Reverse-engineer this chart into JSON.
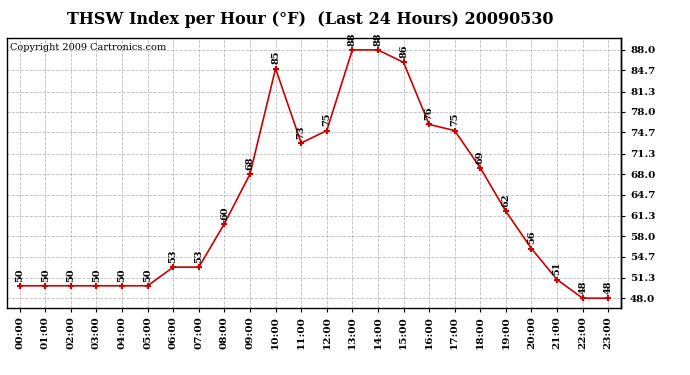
{
  "title": "THSW Index per Hour (°F)  (Last 24 Hours) 20090530",
  "copyright": "Copyright 2009 Cartronics.com",
  "hours": [
    0,
    1,
    2,
    3,
    4,
    5,
    6,
    7,
    8,
    9,
    10,
    11,
    12,
    13,
    14,
    15,
    16,
    17,
    18,
    19,
    20,
    21,
    22,
    23
  ],
  "x_labels": [
    "00:00",
    "01:00",
    "02:00",
    "03:00",
    "04:00",
    "05:00",
    "06:00",
    "07:00",
    "08:00",
    "09:00",
    "10:00",
    "11:00",
    "12:00",
    "13:00",
    "14:00",
    "15:00",
    "16:00",
    "17:00",
    "18:00",
    "19:00",
    "20:00",
    "21:00",
    "22:00",
    "23:00"
  ],
  "values": [
    50,
    50,
    50,
    50,
    50,
    50,
    53,
    53,
    60,
    68,
    85,
    73,
    75,
    88,
    88,
    86,
    76,
    75,
    69,
    62,
    56,
    51,
    48,
    48
  ],
  "y_ticks": [
    48.0,
    51.3,
    54.7,
    58.0,
    61.3,
    64.7,
    68.0,
    71.3,
    74.7,
    78.0,
    81.3,
    84.7,
    88.0
  ],
  "ylim": [
    46.5,
    90.0
  ],
  "line_color": "#cc0000",
  "marker_color": "#cc0000",
  "bg_color": "#ffffff",
  "plot_bg_color": "#ffffff",
  "grid_color": "#bbbbbb",
  "title_fontsize": 11.5,
  "copyright_fontsize": 7,
  "label_fontsize": 7,
  "tick_fontsize": 7.5
}
